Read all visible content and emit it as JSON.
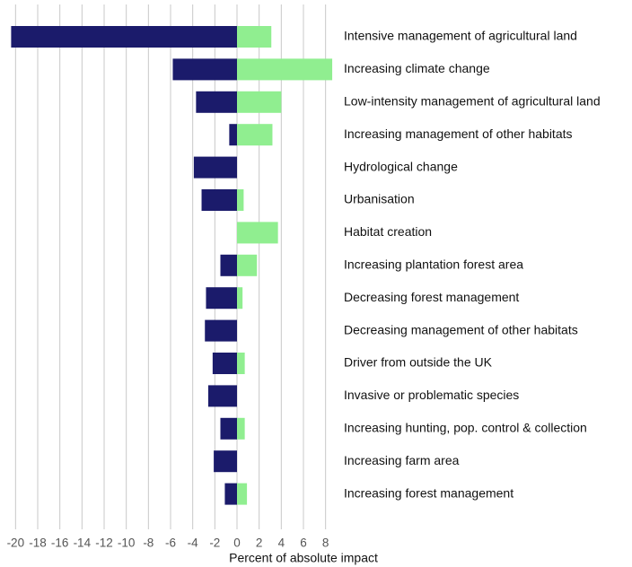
{
  "chart_data": {
    "type": "diverging-bar",
    "x_label": "Percent of absolute impact",
    "categories": [
      "Intensive management of agricultural land",
      "Increasing climate change",
      "Low-intensity management of agricultural land",
      "Increasing management of other habitats",
      "Hydrological change",
      "Urbanisation",
      "Habitat creation",
      "Increasing plantation forest area",
      "Decreasing forest management",
      "Decreasing management of other habitats",
      "Driver from outside the UK",
      "Invasive or problematic species",
      "Increasing hunting, pop. control & collection",
      "Increasing farm area",
      "Increasing forest management"
    ],
    "series": [
      {
        "color": "#1b1b6b",
        "values": [
          -20.4,
          -5.8,
          -3.7,
          -0.7,
          -3.9,
          -3.2,
          0,
          -1.5,
          -2.8,
          -2.9,
          -2.2,
          -2.6,
          -1.5,
          -2.1,
          -1.1
        ]
      },
      {
        "color": "#90ee90",
        "values": [
          3.1,
          8.6,
          4.0,
          3.2,
          0,
          0.6,
          3.7,
          1.8,
          0.5,
          0,
          0.7,
          0,
          0.7,
          0,
          0.9
        ]
      }
    ],
    "xlim": [
      -21,
      9
    ],
    "xticks": [
      -20,
      -18,
      -16,
      -14,
      -12,
      -10,
      -8,
      -6,
      -4,
      -2,
      0,
      2,
      4,
      6,
      8
    ],
    "grid": true
  }
}
